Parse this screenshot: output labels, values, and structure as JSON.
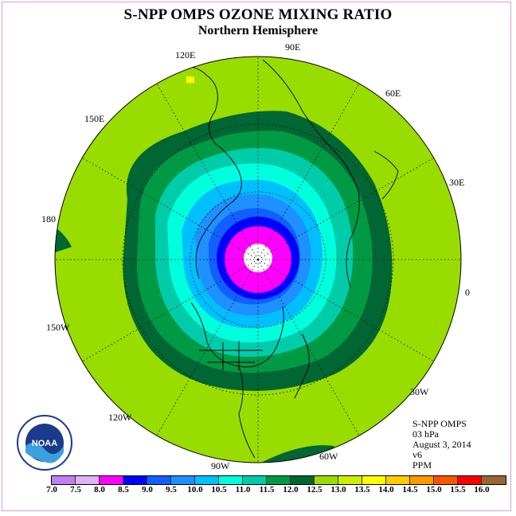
{
  "title": "S-NPP OMPS OZONE MIXING RATIO",
  "subtitle": "Northern Hemisphere",
  "longitude_labels": [
    "90E",
    "60E",
    "30E",
    "0",
    "30W",
    "60W",
    "90W",
    "120W",
    "150W",
    "180",
    "150E",
    "120E"
  ],
  "info": {
    "instrument": "S-NPP OMPS",
    "pressure": "03 hPa",
    "date": "August 3, 2014",
    "version": "v6",
    "units": "PPM"
  },
  "logo_text": "NOAA",
  "legend": {
    "ticks": [
      "7.0",
      "7.5",
      "8.0",
      "8.5",
      "9.0",
      "9.5",
      "10.0",
      "10.5",
      "11.0",
      "11.5",
      "12.0",
      "12.5",
      "13.0",
      "13.5",
      "14.0",
      "14.5",
      "15.0",
      "15.5",
      "16.0"
    ],
    "colors": [
      "#c080f0",
      "#e0b0f8",
      "#ff00ff",
      "#0000ff",
      "#1060ff",
      "#1e90ff",
      "#00bfff",
      "#00ffdd",
      "#00ccaa",
      "#009944",
      "#006633",
      "#99dd00",
      "#ccee00",
      "#ffff00",
      "#ffcc00",
      "#ff9900",
      "#ff5500",
      "#ff0000",
      "#996633"
    ]
  },
  "colors": {
    "outer": "#99dd00",
    "level_11_5": "#006633",
    "level_11": "#009944",
    "level_10_5": "#00ccaa",
    "level_10": "#00ffdd",
    "level_9_5": "#00bfff",
    "level_9": "#1e90ff",
    "level_8_5": "#1060ff",
    "level_8": "#0000ff",
    "level_7_5": "#ff00ff",
    "missing": "#ffffff"
  }
}
